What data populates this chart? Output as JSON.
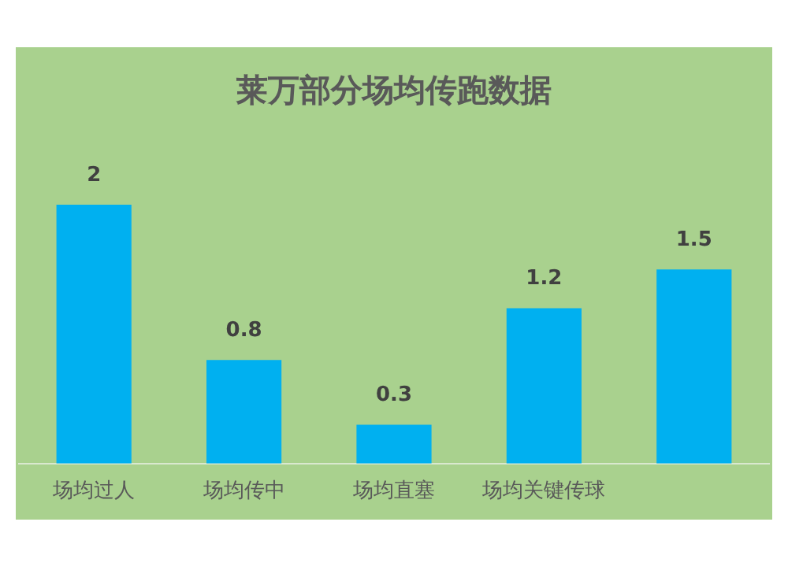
{
  "chart_data": {
    "type": "bar",
    "title": "莱万部分场均传跑数据",
    "categories": [
      "场均过人",
      "场均传中",
      "场均直塞",
      "场均关键传球",
      null
    ],
    "values": [
      2,
      0.8,
      0.3,
      1.2,
      1.5
    ],
    "color": "#00b0f0",
    "data_labels": true,
    "grid": false,
    "legend": false
  }
}
